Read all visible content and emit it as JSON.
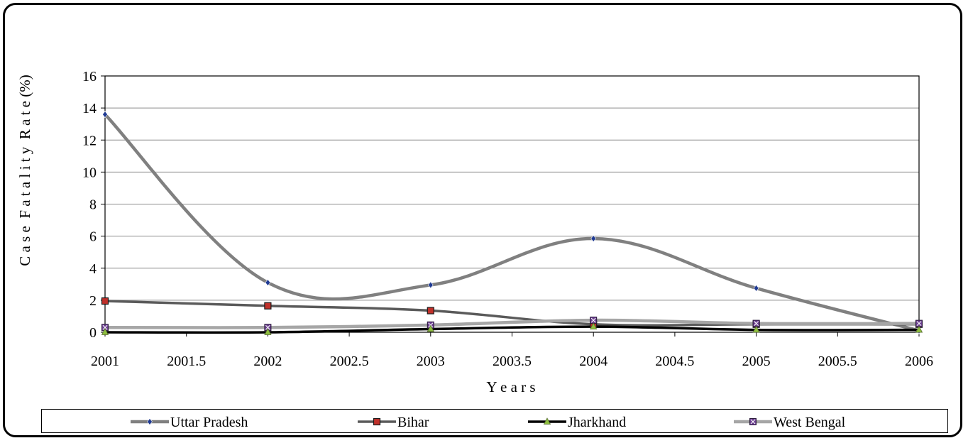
{
  "chart_data": {
    "type": "line",
    "title": "",
    "xlabel": "Y e a r s",
    "ylabel": "C a s e  F a t a l i t y  R a t e (%)",
    "xlim": [
      2001,
      2006
    ],
    "ylim": [
      0,
      16
    ],
    "xticks": [
      2001,
      2001.5,
      2002,
      2002.5,
      2003,
      2003.5,
      2004,
      2004.5,
      2005,
      2005.5,
      2006
    ],
    "yticks": [
      0,
      2,
      4,
      6,
      8,
      10,
      12,
      14,
      16
    ],
    "grid": "horizontal",
    "legend": "bottom",
    "x": [
      2001,
      2002,
      2003,
      2004,
      2005,
      2006
    ],
    "series": [
      {
        "name": "Uttar Pradesh",
        "values": [
          13.6,
          3.1,
          2.95,
          5.85,
          2.75,
          0.1
        ],
        "color": "#808080",
        "marker": "diamond",
        "markerColor": "#1f3a93",
        "width": 4.5
      },
      {
        "name": "Bihar",
        "values": [
          1.95,
          1.65,
          1.35,
          0.5,
          0.5,
          0.5
        ],
        "color": "#5a5a5a",
        "marker": "square",
        "markerColor": "#c0302a",
        "width": 3.5
      },
      {
        "name": "Jharkhand",
        "values": [
          0.0,
          0.0,
          0.2,
          0.35,
          0.15,
          0.15
        ],
        "color": "#000000",
        "marker": "triangle",
        "markerColor": "#8fbf3f",
        "width": 3.5
      },
      {
        "name": "West Bengal",
        "values": [
          0.3,
          0.3,
          0.45,
          0.75,
          0.55,
          0.55
        ],
        "color": "#a6a6a6",
        "marker": "xsquare",
        "markerColor": "#6a3d8f",
        "width": 4.5
      }
    ]
  }
}
